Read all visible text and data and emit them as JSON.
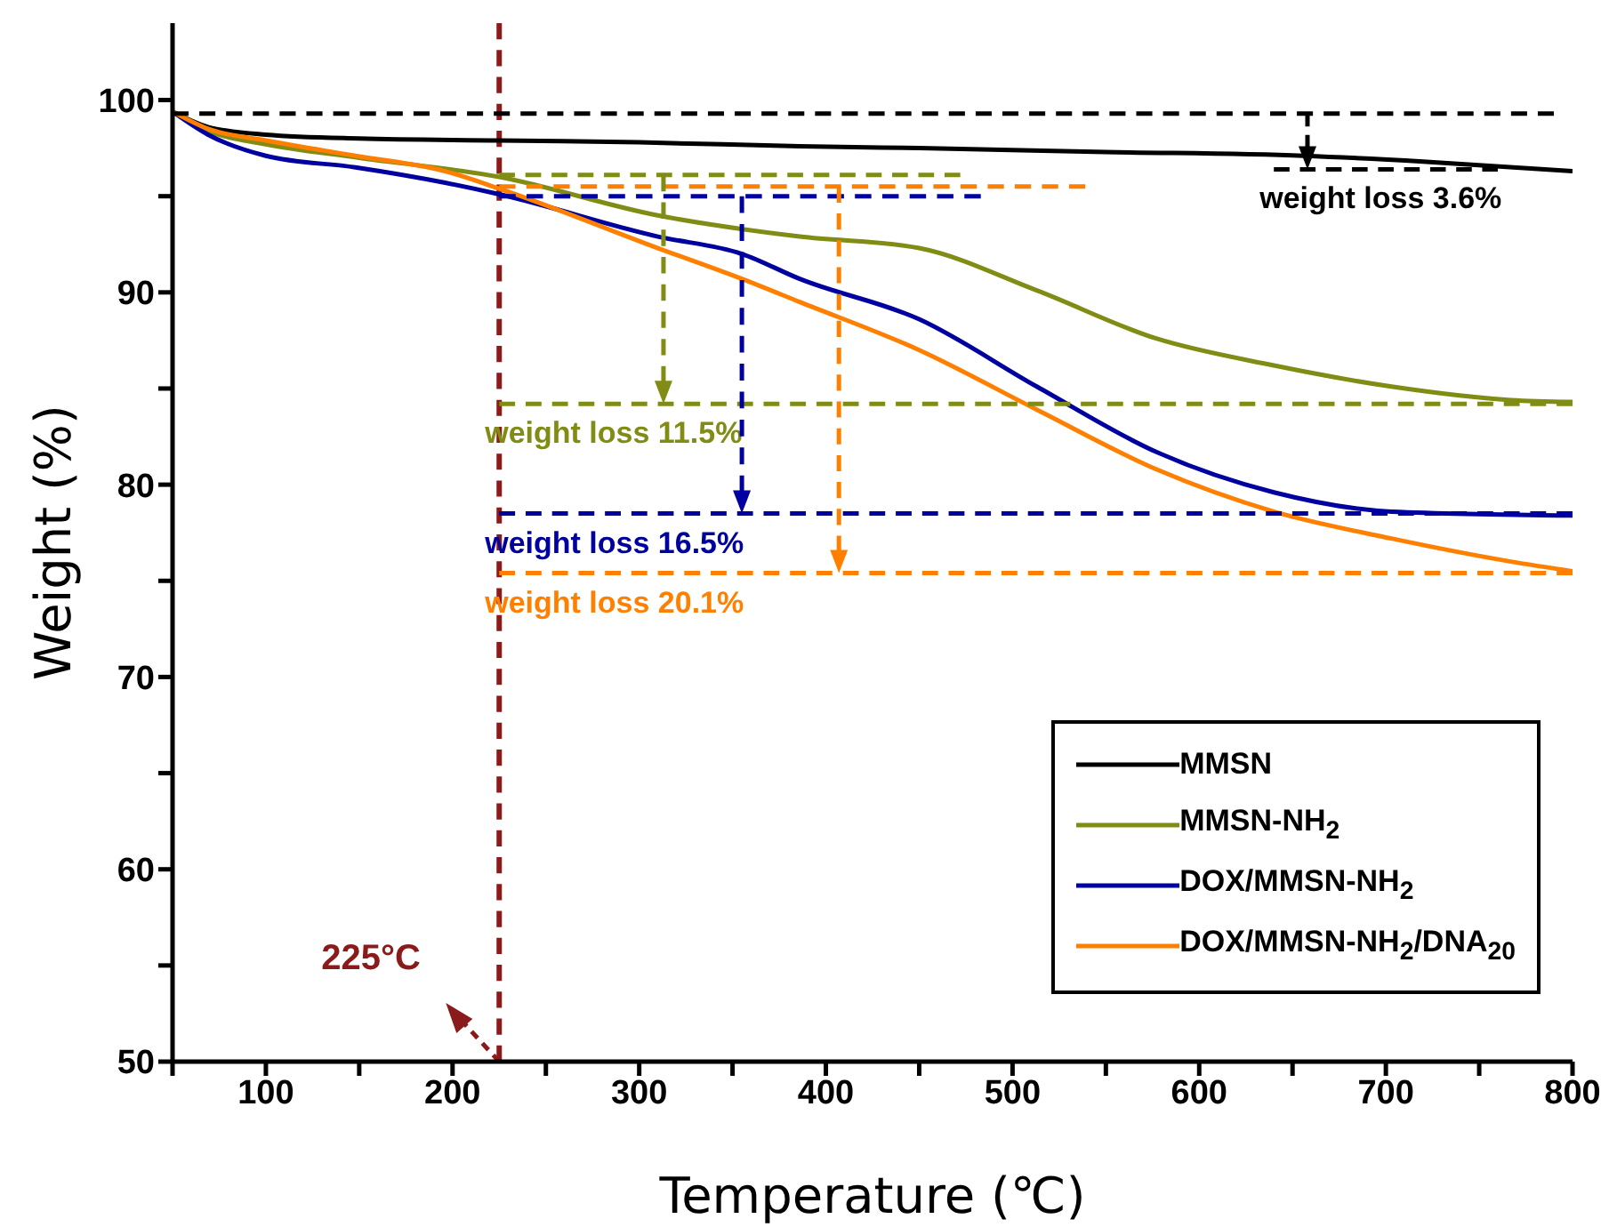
{
  "chart_data": {
    "type": "line",
    "xlabel": "Temperature (℃)",
    "ylabel": "Weight (%)",
    "xlim": [
      50,
      800
    ],
    "ylim": [
      50,
      104
    ],
    "xticks": [
      {
        "value": 50,
        "label": null
      },
      100,
      {
        "value": 150,
        "label": null
      },
      200,
      {
        "value": 250,
        "label": null
      },
      300,
      {
        "value": 350,
        "label": null
      },
      400,
      {
        "value": 450,
        "label": null
      },
      500,
      {
        "value": 550,
        "label": null
      },
      600,
      {
        "value": 650,
        "label": null
      },
      700,
      {
        "value": 750,
        "label": null
      },
      800
    ],
    "yticks": [
      50,
      {
        "value": 55,
        "label": null
      },
      60,
      {
        "value": 65,
        "label": null
      },
      70,
      {
        "value": 75,
        "label": null
      },
      80,
      {
        "value": 85,
        "label": null
      },
      90,
      {
        "value": 95,
        "label": null
      },
      100
    ],
    "legend": "bottom right",
    "ref_lines": [
      {
        "axis": "x",
        "value": 225,
        "label": "225°C",
        "color": "#8b1a1a",
        "line_style": "dashed"
      }
    ],
    "series": [
      {
        "name": "MMSN",
        "color": "#000000",
        "x": [
          50,
          69,
          100,
          150,
          225,
          300,
          386,
          450,
          550,
          656,
          720,
          800
        ],
        "values": [
          99.4,
          98.6,
          98.2,
          98.0,
          97.9,
          97.8,
          97.6,
          97.5,
          97.3,
          97.1,
          96.8,
          96.3
        ]
      },
      {
        "name": "MMSN-NH$_{2}$",
        "color": "#808c14",
        "x": [
          50,
          69,
          100,
          150,
          225,
          310,
          386,
          450,
          513,
          577,
          640,
          703,
          767,
          800
        ],
        "values": [
          99.4,
          98.4,
          97.7,
          97.0,
          96.0,
          94.0,
          92.9,
          92.3,
          90.1,
          87.6,
          86.2,
          85.1,
          84.4,
          84.3
        ]
      },
      {
        "name": "DOX/MMSN-NH$_{2}$",
        "color": "#0000a0",
        "x": [
          50,
          69,
          100,
          148,
          196,
          225,
          310,
          355,
          386,
          450,
          513,
          577,
          640,
          703,
          800
        ],
        "values": [
          99.4,
          98.2,
          97.1,
          96.5,
          95.7,
          95.1,
          92.9,
          92.0,
          90.7,
          88.6,
          85.1,
          81.7,
          79.6,
          78.6,
          78.4
        ]
      },
      {
        "name": "DOX/MMSN-NH$_{2}$/DNA$_{20}$",
        "color": "#ff8000",
        "x": [
          50,
          69,
          100,
          148,
          196,
          225,
          310,
          355,
          386,
          450,
          513,
          577,
          640,
          703,
          767,
          800
        ],
        "values": [
          99.4,
          98.5,
          97.9,
          97.1,
          96.3,
          95.4,
          92.3,
          90.7,
          89.5,
          87.0,
          83.9,
          80.8,
          78.6,
          77.2,
          76.0,
          75.5
        ]
      },
      {
        "color": "#000000",
        "line_style": "dashed",
        "x": [
          50,
          790
        ],
        "values": [
          99.3,
          99.3
        ]
      },
      {
        "name": "weight loss 3.6%",
        "color": "#000000",
        "line_style": "dashed",
        "x": [
          640,
          760
        ],
        "values": [
          96.4,
          96.4
        ]
      },
      {
        "color": "#808c14",
        "line_style": "dashed",
        "x": [
          225,
          472
        ],
        "values": [
          96.1,
          96.1
        ]
      },
      {
        "name": "weight loss 11.5%",
        "color": "#808c14",
        "line_style": "dashed",
        "x": [
          225,
          800
        ],
        "values": [
          84.2,
          84.2
        ]
      },
      {
        "color": "#0000a0",
        "line_style": "dashed",
        "x": [
          225,
          483
        ],
        "values": [
          95.0,
          95.0
        ]
      },
      {
        "name": "weight loss 16.5%",
        "color": "#0000a0",
        "line_style": "dashed",
        "x": [
          225,
          800
        ],
        "values": [
          78.5,
          78.5
        ]
      },
      {
        "color": "#ff8000",
        "line_style": "dashed",
        "x": [
          225,
          539
        ],
        "values": [
          95.5,
          95.5
        ]
      },
      {
        "name": "weight loss 20.1%",
        "color": "#ff8000",
        "line_style": "dashed",
        "x": [
          225,
          800
        ],
        "values": [
          75.4,
          75.4
        ]
      }
    ]
  }
}
